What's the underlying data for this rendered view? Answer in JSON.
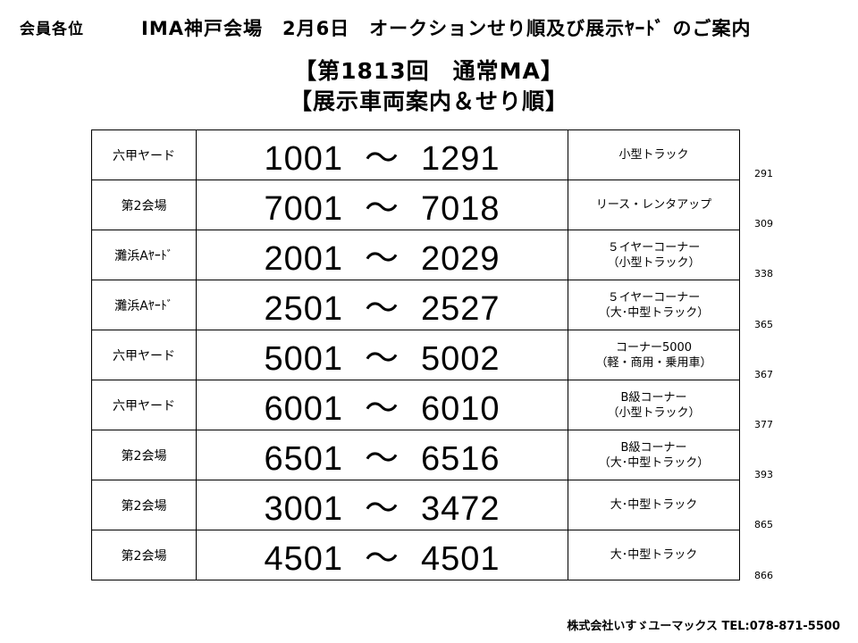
{
  "header": {
    "addressee": "会員各位",
    "title": "IMA神戸会場　2月6日　オークションせり順及び展示ﾔｰﾄﾞ のご案内"
  },
  "session": {
    "title": "【第1813回　通常MA】",
    "subtitle": "【展示車両案内＆せり順】"
  },
  "rows": [
    {
      "location": "六甲ヤード",
      "start": "1001",
      "end": "1291",
      "category": [
        "小型トラック"
      ],
      "count": "291"
    },
    {
      "location": "第2会場",
      "start": "7001",
      "end": "7018",
      "category": [
        "リース・レンタアップ"
      ],
      "count": "309"
    },
    {
      "location": "灘浜Aﾔｰﾄﾞ",
      "start": "2001",
      "end": "2029",
      "category": [
        "５イヤーコーナー",
        "（小型トラック）"
      ],
      "count": "338"
    },
    {
      "location": "灘浜Aﾔｰﾄﾞ",
      "start": "2501",
      "end": "2527",
      "category": [
        "５イヤーコーナー",
        "（大･中型トラック）"
      ],
      "count": "365"
    },
    {
      "location": "六甲ヤード",
      "start": "5001",
      "end": "5002",
      "category": [
        "コーナー5000",
        "（軽・商用・乗用車）"
      ],
      "count": "367"
    },
    {
      "location": "六甲ヤード",
      "start": "6001",
      "end": "6010",
      "category": [
        "B級コーナー",
        "（小型トラック）"
      ],
      "count": "377"
    },
    {
      "location": "第2会場",
      "start": "6501",
      "end": "6516",
      "category": [
        "B級コーナー",
        "（大･中型トラック）"
      ],
      "count": "393"
    },
    {
      "location": "第2会場",
      "start": "3001",
      "end": "3472",
      "category": [
        "大･中型トラック"
      ],
      "count": "865"
    },
    {
      "location": "第2会場",
      "start": "4501",
      "end": "4501",
      "category": [
        "大･中型トラック"
      ],
      "count": "866"
    }
  ],
  "range_separator": "～",
  "footer": {
    "text": "株式会社いすゞユーマックス  TEL:078-871-5500"
  }
}
